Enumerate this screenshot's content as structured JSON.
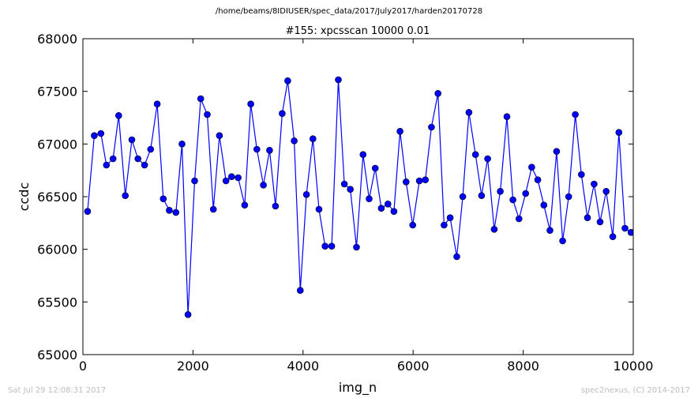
{
  "figure": {
    "path_title": "/home/beams/8IDIUSER/spec_data/2017/July2017/harden20170728",
    "footer_left": "Sat Jul 29 12:08:31 2017",
    "footer_right": "spec2nexus, (C) 2014-2017"
  },
  "chart_data": {
    "type": "line",
    "title": "#155: xpcsscan 10000 0.01",
    "xlabel": "img_n",
    "ylabel": "ccdc",
    "xlim": [
      0,
      10000
    ],
    "ylim": [
      65000,
      68000
    ],
    "x_ticks": [
      0,
      2000,
      4000,
      6000,
      8000,
      10000
    ],
    "y_ticks": [
      65000,
      65500,
      66000,
      66500,
      67000,
      67500,
      68000
    ],
    "grid": false,
    "legend": "none",
    "line_color": "#0000ff",
    "marker_color": "#0000ff",
    "series": [
      {
        "x": [
          85,
          206,
          327,
          428,
          548,
          650,
          770,
          890,
          1000,
          1120,
          1231,
          1350,
          1460,
          1570,
          1690,
          1801,
          1910,
          2030,
          2140,
          2260,
          2370,
          2481,
          2600,
          2701,
          2820,
          2940,
          3050,
          3160,
          3280,
          3391,
          3500,
          3621,
          3721,
          3840,
          3950,
          4061,
          4180,
          4290,
          4400,
          4521,
          4641,
          4751,
          4860,
          4971,
          5090,
          5201,
          5311,
          5422,
          5542,
          5651,
          5762,
          5872,
          5993,
          6113,
          6223,
          6333,
          6452,
          6563,
          6673,
          6793,
          6903,
          7014,
          7133,
          7244,
          7354,
          7474,
          7584,
          7704,
          7814,
          7924,
          8045,
          8155,
          8266,
          8376,
          8486,
          8607,
          8717,
          8827,
          8947,
          9058,
          9168,
          9288,
          9398,
          9508,
          9629,
          9739,
          9849,
          9960
        ],
        "y": [
          66360,
          67080,
          67100,
          66800,
          66860,
          67270,
          66510,
          67040,
          66860,
          66800,
          66950,
          67380,
          66480,
          66370,
          66350,
          67000,
          65380,
          66650,
          67430,
          67280,
          66380,
          67080,
          66650,
          66690,
          66680,
          66420,
          67380,
          66950,
          66610,
          66940,
          66410,
          67290,
          67600,
          67030,
          65610,
          66520,
          67050,
          66380,
          66030,
          66030,
          67610,
          66620,
          66570,
          66020,
          66900,
          66480,
          66770,
          66390,
          66430,
          66360,
          67120,
          66640,
          66230,
          66650,
          66660,
          67160,
          67480,
          66230,
          66300,
          65930,
          66500,
          67300,
          66900,
          66510,
          66860,
          66190,
          66550,
          67260,
          66470,
          66290,
          66530,
          66780,
          66660,
          66420,
          66180,
          66930,
          66080,
          66500,
          67280,
          66710,
          66300,
          66620,
          66260,
          66550,
          66120,
          67110,
          66200,
          66160
        ]
      }
    ]
  }
}
